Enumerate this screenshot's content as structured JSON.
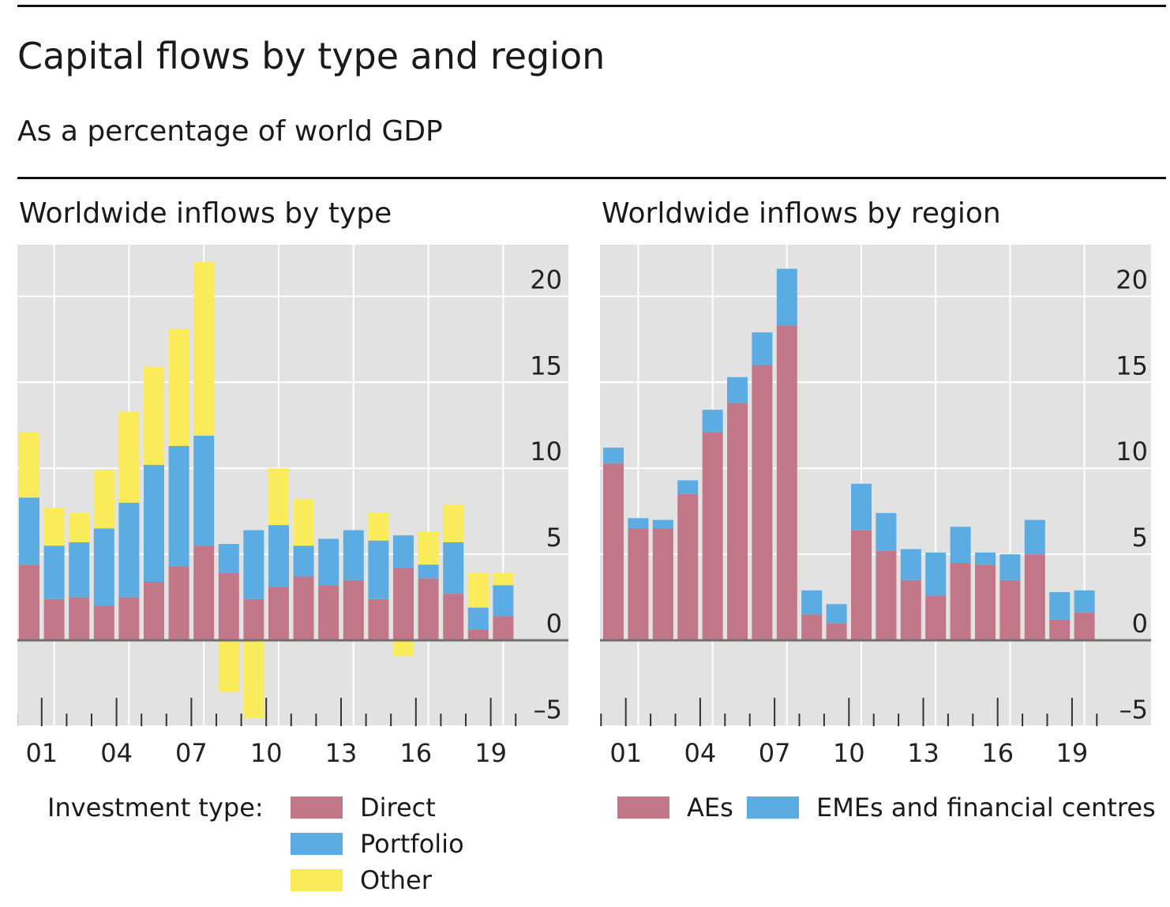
{
  "title": "Capital flows by type and region",
  "subtitle": "As a percentage of world GDP",
  "colors": {
    "direct": "#C27788",
    "portfolio": "#5BACE2",
    "other": "#FAEB5A",
    "plot_bg": "#E2E2E2",
    "grid": "#FFFFFF",
    "zero": "#707070"
  },
  "left_panel": {
    "title": "Worldwide inflows by type",
    "legend": {
      "label": "Investment type:",
      "items": [
        {
          "label": "Direct",
          "color": "#C27788"
        },
        {
          "label": "Portfolio",
          "color": "#5BACE2"
        },
        {
          "label": "Other",
          "color": "#FAEB5A"
        }
      ]
    }
  },
  "right_panel": {
    "title": "Worldwide inflows by region",
    "legend": {
      "items": [
        {
          "label": "AEs",
          "color": "#C27788"
        },
        {
          "label": "EMEs and financial centres",
          "color": "#5BACE2"
        }
      ]
    }
  },
  "chart_data": [
    {
      "type": "bar",
      "stacked": true,
      "title": "Worldwide inflows by type",
      "x": [
        2000,
        2001,
        2002,
        2003,
        2004,
        2005,
        2006,
        2007,
        2008,
        2009,
        2010,
        2011,
        2012,
        2013,
        2014,
        2015,
        2016,
        2017,
        2018,
        2019
      ],
      "x_tick_labels": [
        "01",
        "04",
        "07",
        "10",
        "13",
        "16",
        "19"
      ],
      "y_ticks": [
        20,
        15,
        10,
        5,
        0,
        -5
      ],
      "ylim": [
        -5,
        23
      ],
      "y_axis_side": "right",
      "grid": true,
      "series": [
        {
          "name": "Direct",
          "values": [
            4.4,
            2.4,
            2.5,
            2.0,
            2.5,
            3.4,
            4.3,
            5.5,
            3.9,
            2.4,
            3.1,
            3.7,
            3.2,
            3.5,
            2.4,
            4.2,
            3.6,
            2.7,
            0.6,
            1.4
          ]
        },
        {
          "name": "Portfolio",
          "values": [
            3.9,
            3.1,
            3.2,
            4.5,
            5.5,
            6.8,
            7.0,
            6.4,
            1.7,
            4.0,
            3.6,
            1.8,
            2.7,
            2.9,
            3.4,
            1.9,
            0.8,
            3.0,
            1.3,
            1.8
          ]
        },
        {
          "name": "Other",
          "values": [
            3.8,
            2.2,
            1.7,
            3.4,
            5.3,
            5.7,
            6.8,
            10.1,
            -3.0,
            -4.5,
            3.3,
            2.7,
            0.0,
            0.0,
            1.6,
            -0.9,
            1.9,
            2.2,
            2.0,
            0.7
          ]
        }
      ]
    },
    {
      "type": "bar",
      "stacked": true,
      "title": "Worldwide inflows by region",
      "x": [
        2000,
        2001,
        2002,
        2003,
        2004,
        2005,
        2006,
        2007,
        2008,
        2009,
        2010,
        2011,
        2012,
        2013,
        2014,
        2015,
        2016,
        2017,
        2018,
        2019
      ],
      "x_tick_labels": [
        "01",
        "04",
        "07",
        "10",
        "13",
        "16",
        "19"
      ],
      "y_ticks": [
        20,
        15,
        10,
        5,
        0,
        -5
      ],
      "ylim": [
        -5,
        23
      ],
      "y_axis_side": "right",
      "grid": true,
      "series": [
        {
          "name": "AEs",
          "values": [
            10.3,
            6.5,
            6.5,
            8.5,
            12.1,
            13.8,
            16.0,
            18.3,
            1.5,
            1.0,
            6.4,
            5.2,
            3.5,
            2.6,
            4.5,
            4.4,
            3.5,
            5.0,
            1.2,
            1.6
          ]
        },
        {
          "name": "EMEs and financial centres",
          "values": [
            0.9,
            0.6,
            0.5,
            0.8,
            1.3,
            1.5,
            1.9,
            3.3,
            1.4,
            1.1,
            2.7,
            2.2,
            1.8,
            2.5,
            2.1,
            0.7,
            1.5,
            2.0,
            1.6,
            1.3
          ]
        }
      ]
    }
  ]
}
